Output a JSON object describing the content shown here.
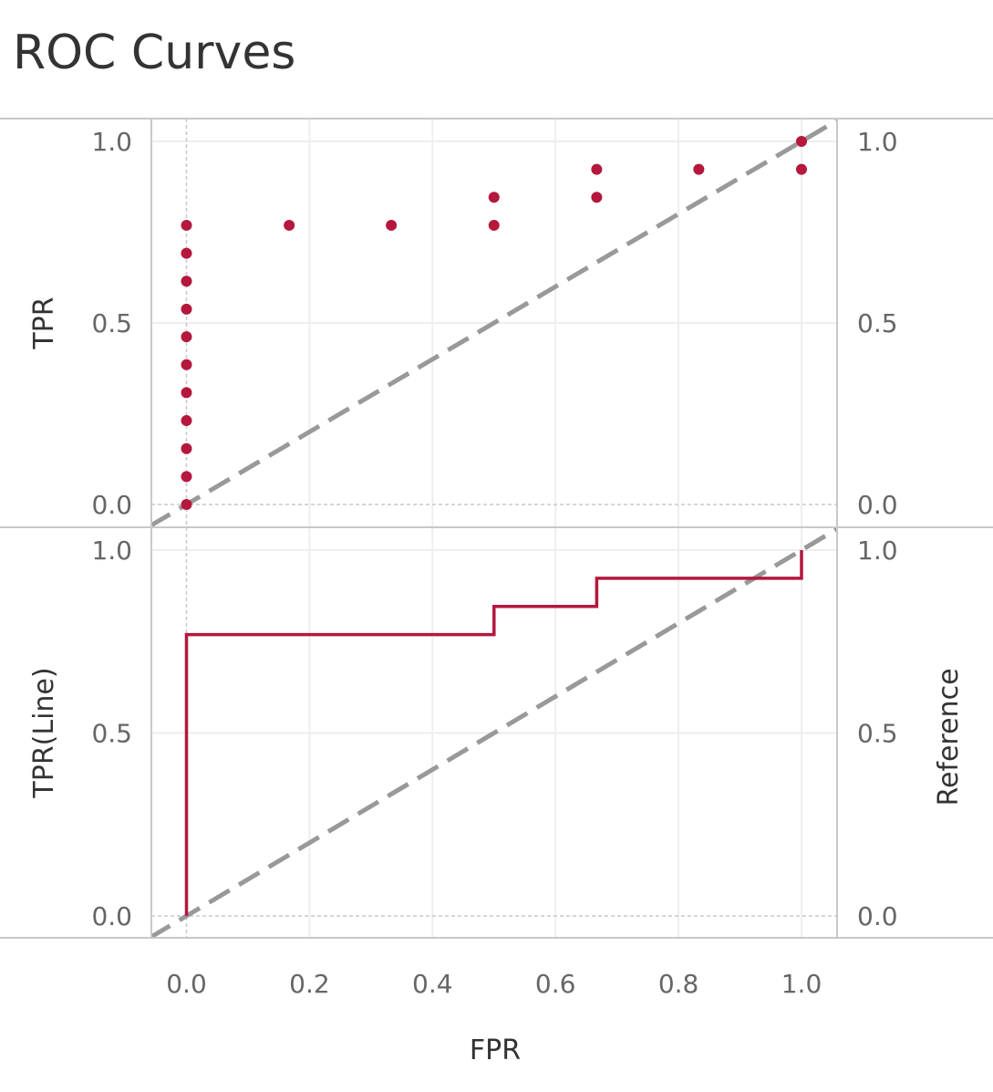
{
  "title": "ROC Curves",
  "colors": {
    "series": "#b5173d",
    "reference": "#999999",
    "grid": "#eeeeee",
    "border": "#c8c8c8"
  },
  "chart_data": [
    {
      "type": "scatter",
      "panel": "top",
      "xlabel": "FPR",
      "ylabel": "TPR",
      "ylim": [
        0,
        1
      ],
      "xlim": [
        0,
        1
      ],
      "y_ticks": [
        "0.0",
        "0.5",
        "1.0"
      ],
      "y_ticks_right": [
        "0.0",
        "0.5",
        "1.0"
      ],
      "series": [
        {
          "points": [
            [
              0,
              0
            ],
            [
              0,
              0.077
            ],
            [
              0,
              0.154
            ],
            [
              0,
              0.231
            ],
            [
              0,
              0.308
            ],
            [
              0,
              0.385
            ],
            [
              0,
              0.462
            ],
            [
              0,
              0.538
            ],
            [
              0,
              0.615
            ],
            [
              0,
              0.692
            ],
            [
              0,
              0.769
            ],
            [
              0.167,
              0.769
            ],
            [
              0.333,
              0.769
            ],
            [
              0.5,
              0.769
            ],
            [
              0.5,
              0.846
            ],
            [
              0.667,
              0.846
            ],
            [
              0.667,
              0.923
            ],
            [
              0.833,
              0.923
            ],
            [
              1,
              0.923
            ],
            [
              1,
              1
            ]
          ]
        }
      ],
      "reference_line": [
        [
          0,
          0
        ],
        [
          1,
          1
        ]
      ],
      "grid": true
    },
    {
      "type": "line",
      "panel": "bottom",
      "xlabel": "FPR",
      "ylabel": "TPR(Line)",
      "ylabel_right": "Reference",
      "ylim": [
        0,
        1
      ],
      "xlim": [
        0,
        1
      ],
      "x_ticks": [
        "0.0",
        "0.2",
        "0.4",
        "0.6",
        "0.8",
        "1.0"
      ],
      "y_ticks": [
        "0.0",
        "0.5",
        "1.0"
      ],
      "y_ticks_right": [
        "0.0",
        "0.5",
        "1.0"
      ],
      "series": [
        {
          "points": [
            [
              0,
              0
            ],
            [
              0,
              0.769
            ],
            [
              0.5,
              0.769
            ],
            [
              0.5,
              0.846
            ],
            [
              0.667,
              0.846
            ],
            [
              0.667,
              0.923
            ],
            [
              1,
              0.923
            ],
            [
              1,
              1
            ]
          ]
        }
      ],
      "reference_line": [
        [
          0,
          0
        ],
        [
          1,
          1
        ]
      ],
      "grid": true
    }
  ]
}
